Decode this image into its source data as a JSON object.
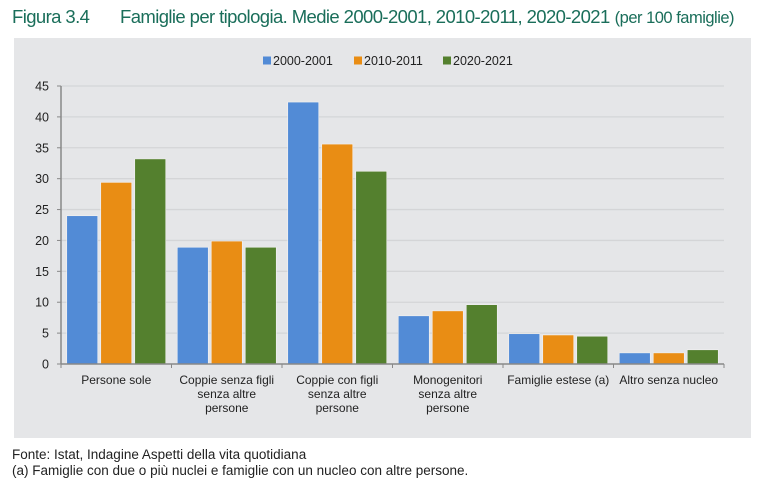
{
  "figure": {
    "label": "Figura 3.4",
    "title": "Famiglie per tipologia. Medie 2000-2001, 2010-2011, 2020-2021",
    "unit": "(per 100 famiglie)"
  },
  "footer": {
    "source": "Fonte: Istat, Indagine Aspetti della vita quotidiana",
    "note": "(a) Famiglie con due o più nuclei e famiglie con un nucleo con altre persone."
  },
  "chart_data": {
    "type": "bar",
    "title": "Famiglie per tipologia. Medie 2000-2001, 2010-2011, 2020-2021 (per 100 famiglie)",
    "xlabel": "",
    "ylabel": "",
    "ylim": [
      0,
      45
    ],
    "yticks": [
      0,
      5,
      10,
      15,
      20,
      25,
      30,
      35,
      40,
      45
    ],
    "grid": true,
    "legend": "top-center",
    "categories": [
      [
        "Persone sole"
      ],
      [
        "Coppie senza figli",
        "senza altre",
        "persone"
      ],
      [
        "Coppie con figli",
        "senza altre",
        "persone"
      ],
      [
        "Monogenitori",
        "senza altre",
        "persone"
      ],
      [
        "Famiglie estese (a)"
      ],
      [
        "Altro senza nucleo"
      ]
    ],
    "series": [
      {
        "name": "2000-2001",
        "color": "#528bd6",
        "values": [
          24.0,
          18.9,
          42.4,
          7.8,
          4.9,
          1.8
        ]
      },
      {
        "name": "2010-2011",
        "color": "#e98d14",
        "values": [
          29.4,
          19.9,
          35.6,
          8.6,
          4.7,
          1.8
        ]
      },
      {
        "name": "2020-2021",
        "color": "#54802e",
        "values": [
          33.2,
          18.9,
          31.2,
          9.6,
          4.5,
          2.3
        ]
      }
    ]
  }
}
